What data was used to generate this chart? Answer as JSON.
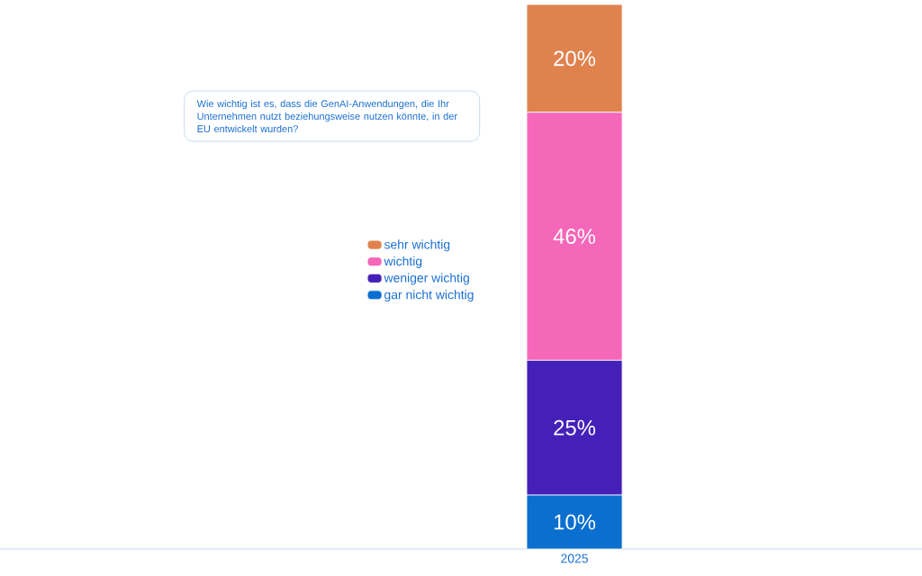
{
  "chart_data": {
    "type": "bar",
    "stacked": true,
    "title": "Wie wichtig ist es, dass die GenAI-Anwendungen, die Ihr Unternehmen nutzt beziehungsweise nutzen könnte, in der EU entwickelt wurden?",
    "categories": [
      "2025"
    ],
    "legend": "left",
    "series": [
      {
        "name": "gar nicht wichtig",
        "color": "#0a6fcf",
        "values": [
          10
        ],
        "value_labels": [
          "10%"
        ]
      },
      {
        "name": "weniger wichtig",
        "color": "#4520b8",
        "values": [
          25
        ],
        "value_labels": [
          "25%"
        ]
      },
      {
        "name": "wichtig",
        "color": "#f467b9",
        "values": [
          46
        ],
        "value_labels": [
          "46%"
        ]
      },
      {
        "name": "sehr wichtig",
        "color": "#e0824e",
        "values": [
          20
        ],
        "value_labels": [
          "20%"
        ]
      }
    ]
  }
}
